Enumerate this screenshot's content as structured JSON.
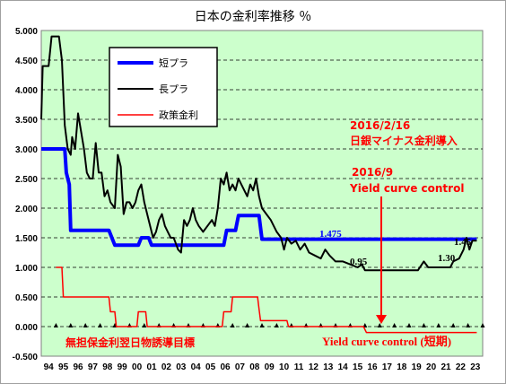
{
  "chart_data": {
    "type": "line",
    "title": "日本の金利率推移 ％",
    "background_color": "#ccffcc",
    "grid": "horizontal dashed",
    "ylim": [
      -0.5,
      5.0
    ],
    "y_ticks": [
      "5.000",
      "4.500",
      "4.000",
      "3.500",
      "3.000",
      "2.500",
      "2.000",
      "1.500",
      "1.000",
      "0.500",
      "0.000",
      "-0.500"
    ],
    "x_ticks": [
      "94",
      "95",
      "96",
      "97",
      "98",
      "99",
      "00",
      "01",
      "02",
      "03",
      "04",
      "05",
      "06",
      "07",
      "08",
      "09",
      "10",
      "11",
      "12",
      "13",
      "14",
      "15",
      "16",
      "17",
      "18",
      "19",
      "20",
      "21",
      "22",
      "23"
    ],
    "xlim": [
      1994.0,
      2024.0
    ],
    "legend": {
      "placement": "top-left",
      "entries": [
        {
          "label": "短プラ",
          "color": "#0000ff"
        },
        {
          "label": "長プラ",
          "color": "#000000"
        },
        {
          "label": "政策金利",
          "color": "#ff0000"
        }
      ]
    },
    "series": [
      {
        "name": "短プラ",
        "color": "#0000ff",
        "points": [
          [
            1994.0,
            3.0
          ],
          [
            1995.6,
            3.0
          ],
          [
            1995.7,
            2.6
          ],
          [
            1995.9,
            2.4
          ],
          [
            1996.0,
            1.625
          ],
          [
            1998.6,
            1.625
          ],
          [
            1998.8,
            1.5
          ],
          [
            1999.0,
            1.375
          ],
          [
            2000.6,
            1.375
          ],
          [
            2000.8,
            1.5
          ],
          [
            2001.3,
            1.5
          ],
          [
            2001.5,
            1.375
          ],
          [
            2006.4,
            1.375
          ],
          [
            2006.6,
            1.625
          ],
          [
            2007.2,
            1.625
          ],
          [
            2007.4,
            1.875
          ],
          [
            2008.8,
            1.875
          ],
          [
            2009.0,
            1.475
          ],
          [
            2023.6,
            1.475
          ]
        ]
      },
      {
        "name": "長プラ",
        "color": "#000000",
        "points": [
          [
            1994.0,
            3.5
          ],
          [
            1994.1,
            4.4
          ],
          [
            1994.5,
            4.4
          ],
          [
            1994.7,
            4.9
          ],
          [
            1995.2,
            4.9
          ],
          [
            1995.4,
            4.5
          ],
          [
            1995.6,
            3.4
          ],
          [
            1995.8,
            3.0
          ],
          [
            1996.0,
            2.9
          ],
          [
            1996.1,
            3.2
          ],
          [
            1996.3,
            3.0
          ],
          [
            1996.5,
            3.6
          ],
          [
            1996.7,
            3.3
          ],
          [
            1996.9,
            3.0
          ],
          [
            1997.1,
            2.6
          ],
          [
            1997.3,
            2.5
          ],
          [
            1997.5,
            2.5
          ],
          [
            1997.7,
            3.1
          ],
          [
            1997.9,
            2.6
          ],
          [
            1998.1,
            2.6
          ],
          [
            1998.3,
            2.2
          ],
          [
            1998.5,
            2.3
          ],
          [
            1998.7,
            2.1
          ],
          [
            1999.0,
            2.0
          ],
          [
            1999.2,
            2.9
          ],
          [
            1999.4,
            2.7
          ],
          [
            1999.6,
            1.9
          ],
          [
            1999.8,
            2.1
          ],
          [
            2000.0,
            2.1
          ],
          [
            2000.2,
            2.0
          ],
          [
            2000.4,
            2.1
          ],
          [
            2000.6,
            2.3
          ],
          [
            2000.8,
            2.4
          ],
          [
            2001.0,
            2.1
          ],
          [
            2001.3,
            1.8
          ],
          [
            2001.6,
            1.5
          ],
          [
            2001.8,
            1.6
          ],
          [
            2002.0,
            1.8
          ],
          [
            2002.2,
            1.9
          ],
          [
            2002.4,
            1.7
          ],
          [
            2002.6,
            1.6
          ],
          [
            2002.8,
            1.5
          ],
          [
            2003.0,
            1.5
          ],
          [
            2003.3,
            1.3
          ],
          [
            2003.5,
            1.25
          ],
          [
            2003.7,
            1.8
          ],
          [
            2003.9,
            1.7
          ],
          [
            2004.1,
            1.8
          ],
          [
            2004.3,
            2.0
          ],
          [
            2004.5,
            1.8
          ],
          [
            2004.7,
            1.7
          ],
          [
            2005.0,
            1.6
          ],
          [
            2005.3,
            1.7
          ],
          [
            2005.6,
            1.8
          ],
          [
            2005.8,
            1.7
          ],
          [
            2006.0,
            2.0
          ],
          [
            2006.2,
            2.5
          ],
          [
            2006.4,
            2.4
          ],
          [
            2006.6,
            2.6
          ],
          [
            2006.8,
            2.3
          ],
          [
            2007.0,
            2.4
          ],
          [
            2007.2,
            2.3
          ],
          [
            2007.4,
            2.5
          ],
          [
            2007.6,
            2.4
          ],
          [
            2007.8,
            2.3
          ],
          [
            2008.0,
            2.2
          ],
          [
            2008.2,
            2.4
          ],
          [
            2008.4,
            2.3
          ],
          [
            2008.6,
            2.5
          ],
          [
            2008.8,
            2.2
          ],
          [
            2009.0,
            2.0
          ],
          [
            2009.3,
            1.9
          ],
          [
            2009.6,
            1.8
          ],
          [
            2009.8,
            1.7
          ],
          [
            2010.0,
            1.6
          ],
          [
            2010.3,
            1.5
          ],
          [
            2010.5,
            1.3
          ],
          [
            2010.7,
            1.5
          ],
          [
            2011.0,
            1.4
          ],
          [
            2011.3,
            1.45
          ],
          [
            2011.6,
            1.3
          ],
          [
            2011.9,
            1.4
          ],
          [
            2012.2,
            1.25
          ],
          [
            2012.6,
            1.2
          ],
          [
            2013.0,
            1.15
          ],
          [
            2013.3,
            1.3
          ],
          [
            2013.6,
            1.2
          ],
          [
            2014.0,
            1.1
          ],
          [
            2014.5,
            1.1
          ],
          [
            2015.0,
            1.05
          ],
          [
            2015.5,
            1.0
          ],
          [
            2015.8,
            1.05
          ],
          [
            2016.0,
            0.95
          ],
          [
            2016.3,
            0.95
          ],
          [
            2018.0,
            0.95
          ],
          [
            2019.0,
            0.95
          ],
          [
            2019.6,
            0.95
          ],
          [
            2020.0,
            1.1
          ],
          [
            2020.3,
            1.0
          ],
          [
            2021.0,
            1.0
          ],
          [
            2021.8,
            1.0
          ],
          [
            2022.0,
            1.1
          ],
          [
            2022.4,
            1.15
          ],
          [
            2022.7,
            1.3
          ],
          [
            2022.9,
            1.5
          ],
          [
            2023.1,
            1.3
          ],
          [
            2023.3,
            1.45
          ],
          [
            2023.6,
            1.45
          ]
        ]
      },
      {
        "name": "政策金利",
        "color": "#ff0000",
        "points": [
          [
            1995.0,
            1.0
          ],
          [
            1995.4,
            1.0
          ],
          [
            1995.5,
            0.5
          ],
          [
            1998.6,
            0.5
          ],
          [
            1998.7,
            0.25
          ],
          [
            1999.0,
            0.25
          ],
          [
            1999.1,
            0.0
          ],
          [
            2000.5,
            0.0
          ],
          [
            2000.6,
            0.25
          ],
          [
            2001.1,
            0.25
          ],
          [
            2001.2,
            0.0
          ],
          [
            2006.3,
            0.0
          ],
          [
            2006.4,
            0.25
          ],
          [
            2006.9,
            0.25
          ],
          [
            2007.0,
            0.5
          ],
          [
            2008.7,
            0.5
          ],
          [
            2008.8,
            0.3
          ],
          [
            2008.9,
            0.1
          ],
          [
            2010.7,
            0.1
          ],
          [
            2010.8,
            0.0
          ],
          [
            2015.9,
            0.0
          ],
          [
            2016.1,
            -0.1
          ],
          [
            2023.6,
            -0.1
          ]
        ]
      }
    ],
    "annotations": {
      "neg_rate_date": "2016/2/16",
      "neg_rate_text": "日銀マイナス金利導入",
      "ycc_date": "2016/9",
      "ycc_text": "Yield curve control",
      "ycc_short": "Yield curve control (短期)",
      "zero_rate": "無担保金利翌日物誘導目標",
      "val_1475": "1.475",
      "val_145": "1.45",
      "val_130": "1.30",
      "val_095": "0.95"
    }
  }
}
